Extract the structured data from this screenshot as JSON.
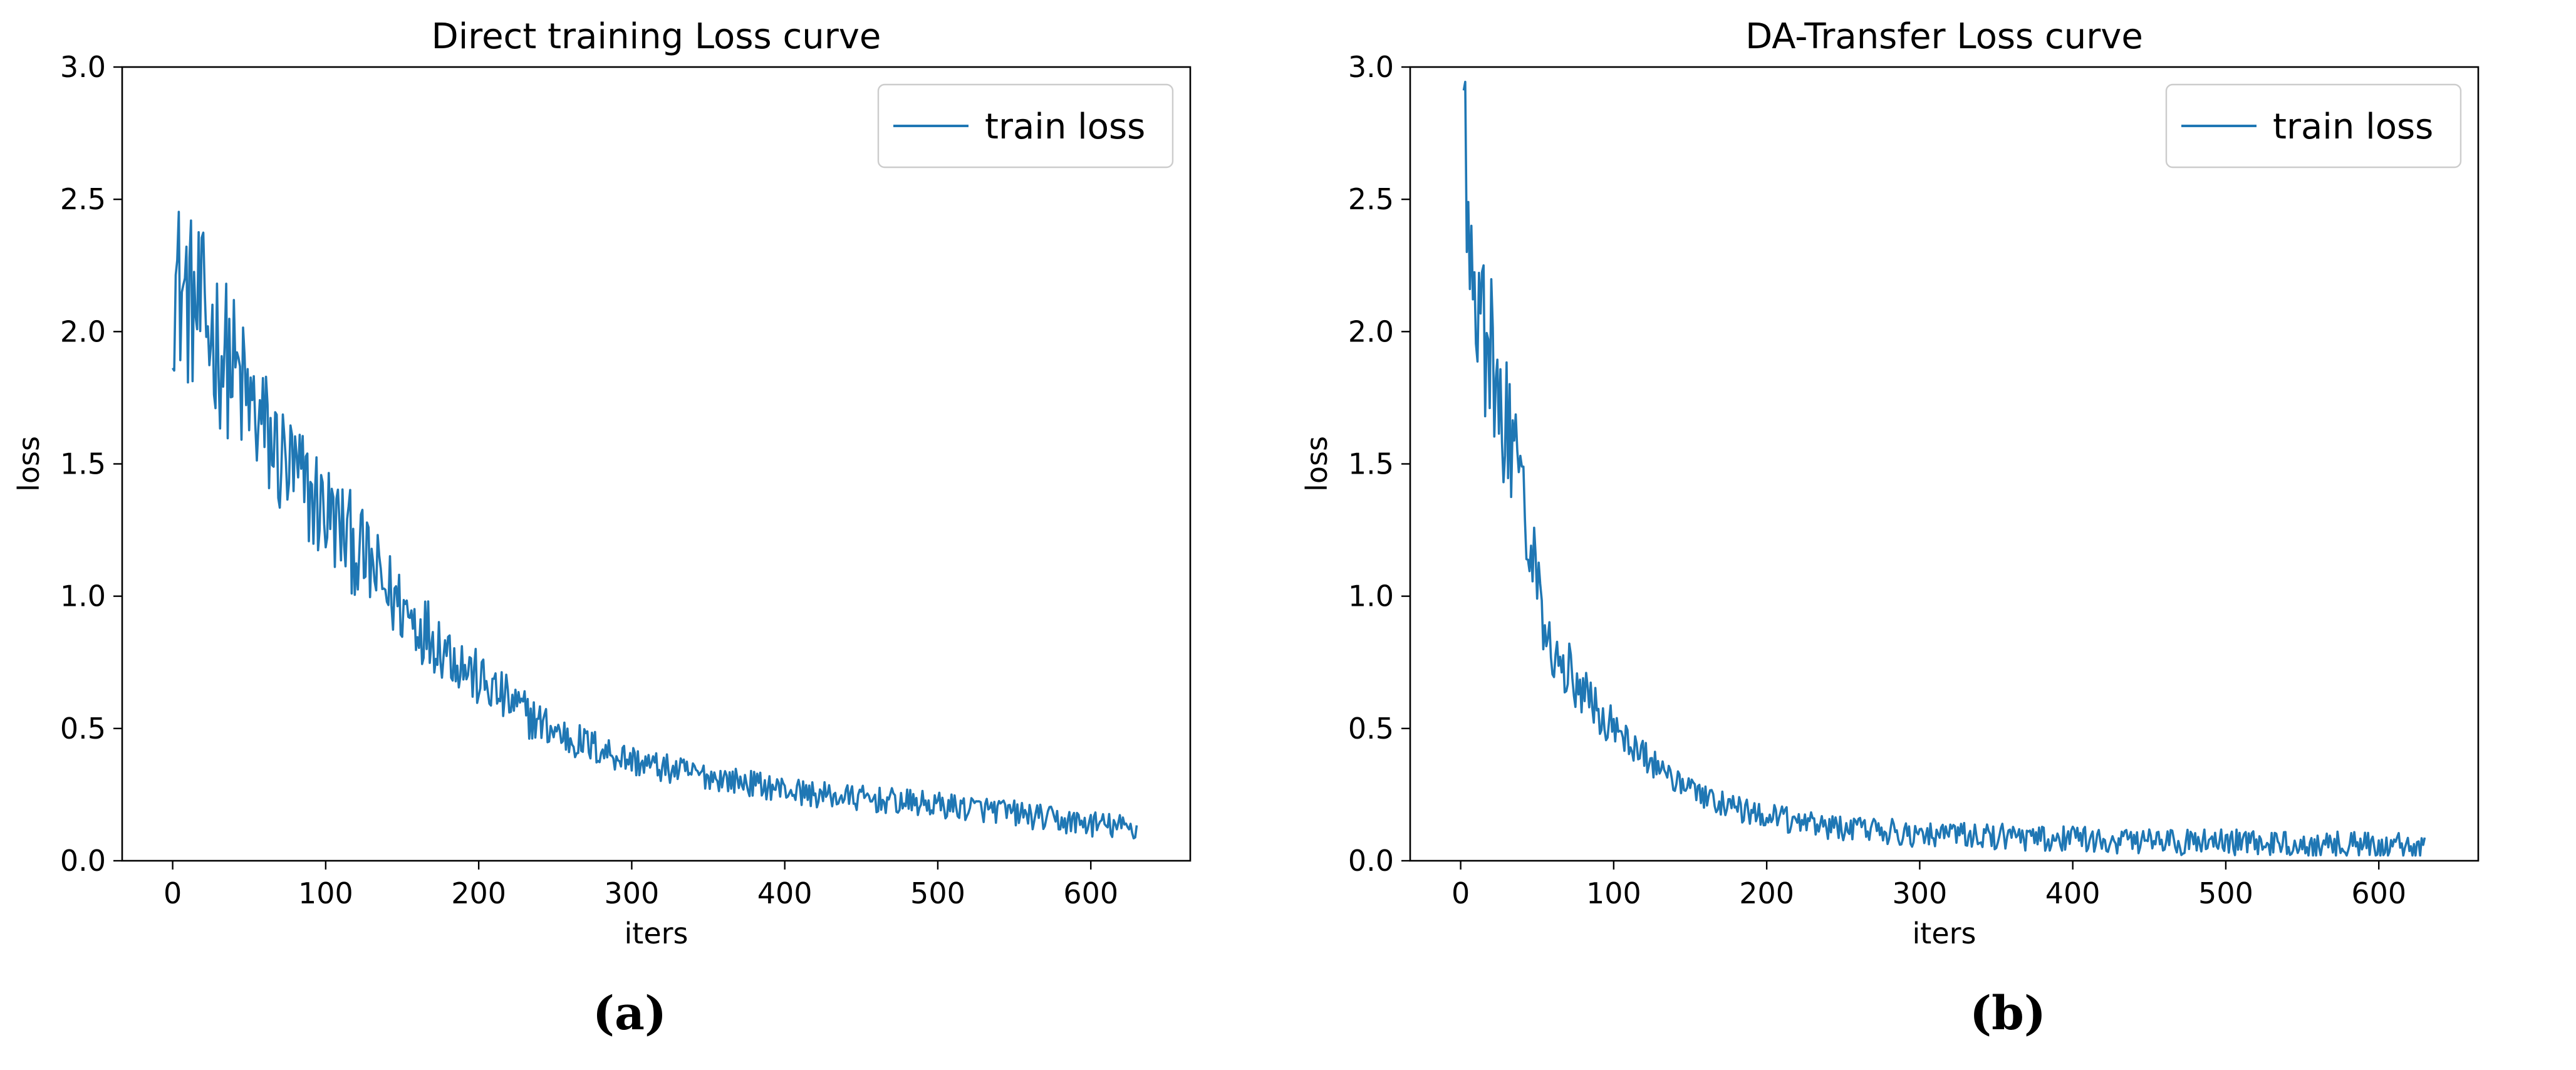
{
  "chart_data": [
    {
      "type": "line",
      "panel": "(a)",
      "title": "Direct training Loss curve",
      "xlabel": "iters",
      "ylabel": "loss",
      "xlim": [
        -33,
        665
      ],
      "ylim": [
        0,
        3.0
      ],
      "xticks": [
        0,
        100,
        200,
        300,
        400,
        500,
        600
      ],
      "yticks": [
        0.0,
        0.5,
        1.0,
        1.5,
        2.0,
        2.5,
        3.0
      ],
      "legend": "top-right",
      "grid": false,
      "color": "#1f77b4",
      "series": [
        {
          "name": "train loss",
          "x": [
            0,
            10,
            20,
            30,
            40,
            50,
            60,
            70,
            80,
            90,
            100,
            110,
            120,
            130,
            140,
            150,
            160,
            170,
            180,
            190,
            200,
            210,
            220,
            230,
            240,
            250,
            260,
            270,
            280,
            290,
            300,
            320,
            340,
            360,
            380,
            400,
            420,
            440,
            460,
            480,
            500,
            520,
            540,
            560,
            580,
            600,
            615,
            630
          ],
          "y": [
            2.2,
            2.12,
            2.05,
            1.95,
            1.85,
            1.72,
            1.62,
            1.52,
            1.45,
            1.38,
            1.32,
            1.25,
            1.18,
            1.1,
            1.02,
            0.96,
            0.9,
            0.85,
            0.8,
            0.74,
            0.68,
            0.64,
            0.6,
            0.56,
            0.52,
            0.49,
            0.46,
            0.44,
            0.42,
            0.4,
            0.38,
            0.35,
            0.33,
            0.31,
            0.29,
            0.27,
            0.25,
            0.24,
            0.23,
            0.22,
            0.21,
            0.2,
            0.19,
            0.17,
            0.15,
            0.14,
            0.13,
            0.12
          ]
        }
      ]
    },
    {
      "type": "line",
      "panel": "(b)",
      "title": "DA-Transfer Loss curve",
      "xlabel": "iters",
      "ylabel": "loss",
      "xlim": [
        -33,
        665
      ],
      "ylim": [
        0,
        3.0
      ],
      "xticks": [
        0,
        100,
        200,
        300,
        400,
        500,
        600
      ],
      "yticks": [
        0.0,
        0.5,
        1.0,
        1.5,
        2.0,
        2.5,
        3.0
      ],
      "legend": "top-right",
      "grid": false,
      "color": "#1f77b4",
      "series": [
        {
          "name": "train loss",
          "x": [
            2,
            4,
            6,
            8,
            10,
            15,
            20,
            25,
            30,
            35,
            40,
            45,
            50,
            55,
            60,
            70,
            80,
            90,
            100,
            110,
            120,
            130,
            140,
            150,
            160,
            170,
            180,
            190,
            200,
            220,
            240,
            260,
            280,
            300,
            320,
            340,
            360,
            380,
            400,
            450,
            500,
            550,
            600,
            630
          ],
          "y": [
            3.0,
            2.5,
            2.25,
            2.1,
            2.08,
            2.0,
            1.9,
            1.78,
            1.65,
            1.5,
            1.38,
            1.2,
            1.05,
            0.92,
            0.83,
            0.72,
            0.64,
            0.57,
            0.5,
            0.44,
            0.39,
            0.35,
            0.31,
            0.27,
            0.24,
            0.22,
            0.2,
            0.18,
            0.17,
            0.15,
            0.13,
            0.12,
            0.11,
            0.1,
            0.1,
            0.09,
            0.09,
            0.08,
            0.08,
            0.07,
            0.07,
            0.06,
            0.06,
            0.05
          ]
        }
      ]
    }
  ]
}
